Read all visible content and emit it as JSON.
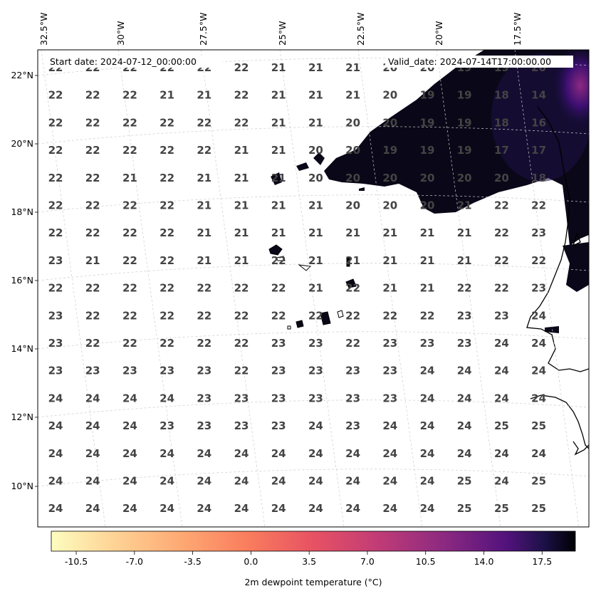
{
  "map": {
    "start_date": "Start date: 2024-07-12_00:00:00",
    "valid_date": "Valid_date: 2024-07-14T17:00:00.00",
    "lon_labels": [
      "32.5°W",
      "30°W",
      "27.5°W",
      "25°W",
      "22.5°W",
      "20°W",
      "17.5°W"
    ],
    "lat_labels": [
      "22°N",
      "20°N",
      "18°N",
      "16°N",
      "14°N",
      "12°N",
      "10°N"
    ],
    "value_grid": [
      [
        "22",
        "22",
        "22",
        "22",
        "22",
        "22",
        "21",
        "21",
        "21",
        "20",
        "20",
        "19",
        "19",
        "20"
      ],
      [
        "22",
        "22",
        "22",
        "21",
        "21",
        "22",
        "21",
        "21",
        "21",
        "20",
        "19",
        "19",
        "18",
        "14"
      ],
      [
        "22",
        "22",
        "22",
        "22",
        "22",
        "22",
        "21",
        "21",
        "20",
        "20",
        "19",
        "19",
        "18",
        "16"
      ],
      [
        "22",
        "22",
        "22",
        "22",
        "22",
        "21",
        "21",
        "20",
        "20",
        "19",
        "19",
        "19",
        "17",
        "17"
      ],
      [
        "22",
        "22",
        "21",
        "22",
        "21",
        "21",
        "21",
        "20",
        "20",
        "20",
        "20",
        "20",
        "20",
        "18"
      ],
      [
        "22",
        "22",
        "22",
        "22",
        "21",
        "21",
        "21",
        "21",
        "20",
        "20",
        "20",
        "21",
        "22",
        "22"
      ],
      [
        "22",
        "22",
        "22",
        "22",
        "21",
        "21",
        "21",
        "21",
        "21",
        "21",
        "21",
        "21",
        "22",
        "23"
      ],
      [
        "23",
        "21",
        "22",
        "22",
        "21",
        "21",
        "22",
        "21",
        "21",
        "21",
        "21",
        "21",
        "22",
        "22"
      ],
      [
        "22",
        "22",
        "22",
        "22",
        "22",
        "22",
        "22",
        "21",
        "22",
        "21",
        "21",
        "22",
        "22",
        "23"
      ],
      [
        "23",
        "22",
        "22",
        "22",
        "22",
        "22",
        "22",
        "22",
        "22",
        "22",
        "22",
        "23",
        "23",
        "24"
      ],
      [
        "23",
        "22",
        "22",
        "22",
        "22",
        "22",
        "23",
        "23",
        "22",
        "23",
        "23",
        "23",
        "24",
        "24"
      ],
      [
        "23",
        "23",
        "23",
        "23",
        "23",
        "22",
        "23",
        "23",
        "23",
        "23",
        "24",
        "24",
        "24",
        "24"
      ],
      [
        "24",
        "24",
        "24",
        "24",
        "23",
        "23",
        "23",
        "23",
        "23",
        "23",
        "24",
        "24",
        "24",
        "24"
      ],
      [
        "24",
        "24",
        "24",
        "23",
        "23",
        "23",
        "23",
        "24",
        "23",
        "24",
        "24",
        "24",
        "25",
        "25"
      ],
      [
        "24",
        "24",
        "24",
        "24",
        "24",
        "24",
        "24",
        "24",
        "24",
        "24",
        "24",
        "24",
        "24",
        "24"
      ],
      [
        "24",
        "24",
        "24",
        "24",
        "24",
        "24",
        "24",
        "24",
        "24",
        "24",
        "24",
        "25",
        "24",
        "25"
      ],
      [
        "24",
        "24",
        "24",
        "24",
        "24",
        "24",
        "24",
        "24",
        "24",
        "24",
        "24",
        "25",
        "25",
        "25"
      ]
    ]
  },
  "colorbar": {
    "label": "2m dewpoint temperature ($^\\circ$C)",
    "label_display": "2m dewpoint temperature (°C)",
    "ticks": [
      "-10.5",
      "-7.0",
      "-3.5",
      "0.0",
      "3.5",
      "7.0",
      "10.5",
      "14.0",
      "17.5"
    ],
    "colormap": "magma_r",
    "vmin": -12,
    "vmax": 19.5
  },
  "colors": {
    "land": "#0a0818",
    "coast": "#000000"
  }
}
